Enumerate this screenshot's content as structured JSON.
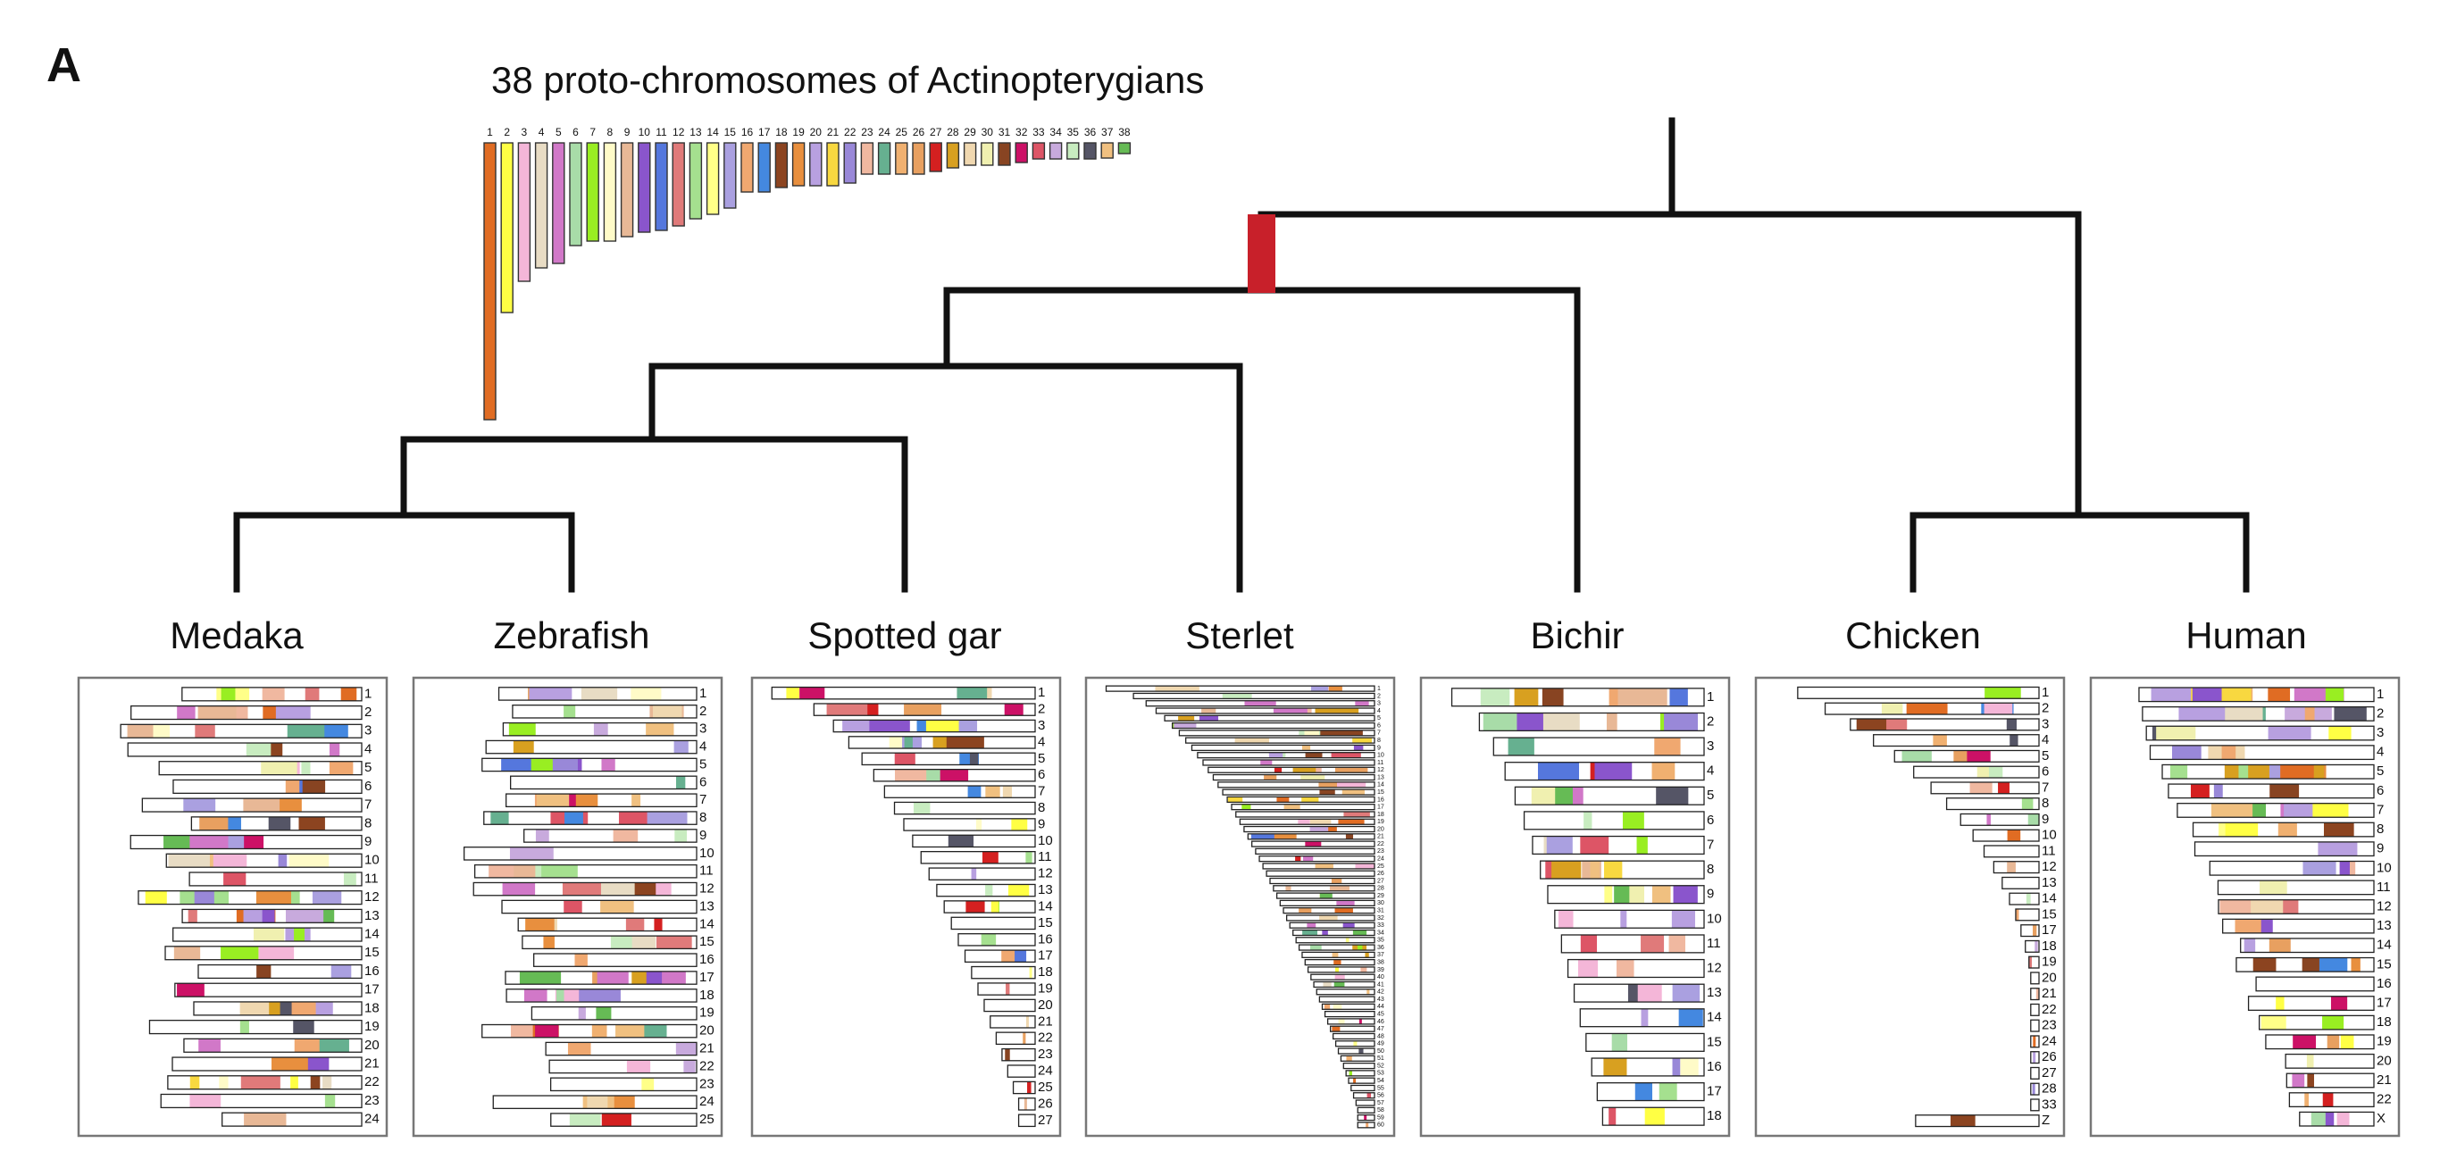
{
  "panel": {
    "letter": "A"
  },
  "title": "38 proto-chromosomes of Actinopterygians",
  "proto_chromosomes": {
    "labels": [
      "1",
      "2",
      "3",
      "4",
      "5",
      "6",
      "7",
      "8",
      "9",
      "10",
      "11",
      "12",
      "13",
      "14",
      "15",
      "16",
      "17",
      "18",
      "19",
      "20",
      "21",
      "22",
      "23",
      "24",
      "25",
      "26",
      "27",
      "28",
      "29",
      "30",
      "31",
      "32",
      "33",
      "34",
      "35",
      "36",
      "37",
      "38"
    ],
    "relative_lengths": [
      310,
      190,
      155,
      140,
      135,
      115,
      110,
      110,
      105,
      100,
      98,
      93,
      85,
      80,
      73,
      55,
      55,
      50,
      48,
      48,
      48,
      45,
      35,
      35,
      35,
      35,
      32,
      28,
      25,
      25,
      25,
      22,
      18,
      18,
      18,
      18,
      17,
      12
    ],
    "colors": [
      "#e06c23",
      "#ffff44",
      "#f4b6d8",
      "#e8dcc4",
      "#d178c8",
      "#a8dca8",
      "#99ee22",
      "#fffbc8",
      "#e8b896",
      "#8a55cc",
      "#5577dd",
      "#e07a7a",
      "#a5e08f",
      "#ffff88",
      "#aaa0e0",
      "#f0a870",
      "#4488e0",
      "#8c4420",
      "#e88f3e",
      "#b8a0e0",
      "#f8d840",
      "#9988d8",
      "#f0b8a0",
      "#66b090",
      "#f0b070",
      "#e8a060",
      "#d42020",
      "#d8a020",
      "#f0d8b0",
      "#f0f0b0",
      "#884422",
      "#cc1166",
      "#dd5566",
      "#c8aadd",
      "#c8ecc0",
      "#555566",
      "#f0c080",
      "#66bb55"
    ]
  },
  "tree": {
    "wgd_marker_color": "#c8202a"
  },
  "species": [
    {
      "name": "Medaka",
      "chromosome_labels": [
        "1",
        "2",
        "3",
        "4",
        "5",
        "6",
        "7",
        "8",
        "9",
        "10",
        "11",
        "12",
        "13",
        "14",
        "15",
        "16",
        "17",
        "18",
        "19",
        "20",
        "21",
        "22",
        "23",
        "24"
      ]
    },
    {
      "name": "Zebrafish",
      "chromosome_labels": [
        "1",
        "2",
        "3",
        "4",
        "5",
        "6",
        "7",
        "8",
        "9",
        "10",
        "11",
        "12",
        "13",
        "14",
        "15",
        "16",
        "17",
        "18",
        "19",
        "20",
        "21",
        "22",
        "23",
        "24",
        "25"
      ]
    },
    {
      "name": "Spotted gar",
      "chromosome_labels": [
        "1",
        "2",
        "3",
        "4",
        "5",
        "6",
        "7",
        "8",
        "9",
        "10",
        "11",
        "12",
        "13",
        "14",
        "15",
        "16",
        "17",
        "18",
        "19",
        "20",
        "21",
        "22",
        "23",
        "24",
        "25",
        "26",
        "27"
      ]
    },
    {
      "name": "Sterlet",
      "chromosome_labels": [
        "1",
        "2",
        "3",
        "4",
        "5",
        "6",
        "7",
        "8",
        "9",
        "10",
        "11",
        "12",
        "13",
        "14",
        "15",
        "16",
        "17",
        "18",
        "19",
        "20",
        "21",
        "22",
        "23",
        "24",
        "25",
        "26",
        "27",
        "28",
        "29",
        "30",
        "31",
        "32",
        "33",
        "34",
        "35",
        "36",
        "37",
        "38",
        "39",
        "40",
        "41",
        "42",
        "43",
        "44",
        "45",
        "46",
        "47",
        "48",
        "49",
        "50",
        "51",
        "52",
        "53",
        "54",
        "55",
        "56",
        "57",
        "58",
        "59",
        "60"
      ]
    },
    {
      "name": "Bichir",
      "chromosome_labels": [
        "1",
        "2",
        "3",
        "4",
        "5",
        "6",
        "7",
        "8",
        "9",
        "10",
        "11",
        "12",
        "13",
        "14",
        "15",
        "16",
        "17",
        "18"
      ]
    },
    {
      "name": "Chicken",
      "chromosome_labels": [
        "1",
        "2",
        "3",
        "4",
        "5",
        "6",
        "7",
        "8",
        "9",
        "10",
        "11",
        "12",
        "13",
        "14",
        "15",
        "17",
        "18",
        "19",
        "20",
        "21",
        "22",
        "23",
        "24",
        "26",
        "27",
        "28",
        "33",
        "Z"
      ]
    },
    {
      "name": "Human",
      "chromosome_labels": [
        "1",
        "2",
        "3",
        "4",
        "5",
        "6",
        "7",
        "8",
        "9",
        "10",
        "11",
        "12",
        "13",
        "14",
        "15",
        "16",
        "17",
        "18",
        "19",
        "20",
        "21",
        "22",
        "X"
      ]
    }
  ]
}
